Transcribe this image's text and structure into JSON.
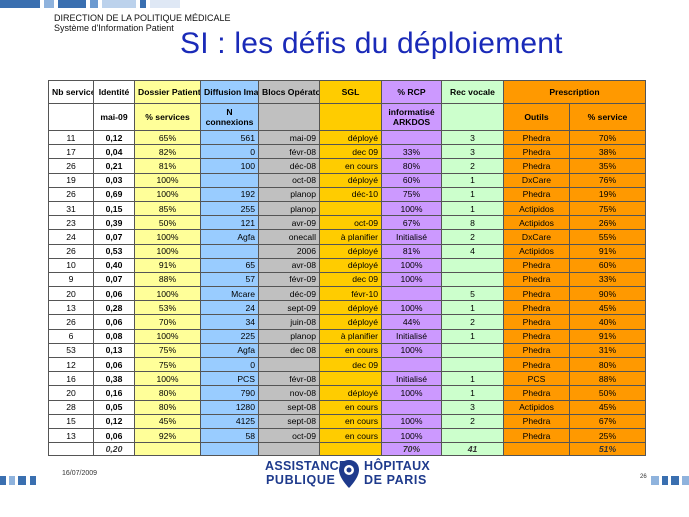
{
  "header": {
    "dept_line1": "DIRECTION DE LA POLITIQUE MÉDICALE",
    "dept_line2": "Système d'Information Patient",
    "title": "SI : les défis du déploiement"
  },
  "table": {
    "head1": {
      "nb": "Nb services",
      "identite": "Identité",
      "dossier": "Dossier Patient",
      "diffusion": "Diffusion Images",
      "blocs": "Blocs Opératoires",
      "sgl": "SGL",
      "rcp": "% RCP",
      "rec": "Rec vocale",
      "prescription": "Prescription"
    },
    "head2": {
      "identite": "mai-09",
      "dossier": "% services",
      "diffusion": "N connexions",
      "rcp": "informatisé ARKDOS",
      "outils": "Outils",
      "pct": "% service"
    },
    "rows": [
      {
        "nb": "11",
        "id": "0,12",
        "ds": "65%",
        "di": "561",
        "bl": "mai-09",
        "sg": "déployé",
        "rc": "",
        "rv": "3",
        "ou": "Phedra",
        "ps": "70%"
      },
      {
        "nb": "17",
        "id": "0,04",
        "ds": "82%",
        "di": "0",
        "bl": "févr-08",
        "sg": "dec 09",
        "rc": "33%",
        "rv": "3",
        "ou": "Phedra",
        "ps": "38%"
      },
      {
        "nb": "26",
        "id": "0,21",
        "ds": "81%",
        "di": "100",
        "bl": "déc-08",
        "sg": "en cours",
        "rc": "80%",
        "rv": "2",
        "ou": "Phedra",
        "ps": "35%"
      },
      {
        "nb": "19",
        "id": "0,03",
        "ds": "100%",
        "di": "",
        "bl": "oct-08",
        "sg": "déployé",
        "rc": "60%",
        "rv": "1",
        "ou": "DxCare",
        "ps": "76%"
      },
      {
        "nb": "26",
        "id": "0,69",
        "ds": "100%",
        "di": "192",
        "bl": "planop",
        "sg": "déc-10",
        "rc": "75%",
        "rv": "1",
        "ou": "Phedra",
        "ps": "19%"
      },
      {
        "nb": "31",
        "id": "0,15",
        "ds": "85%",
        "di": "255",
        "bl": "planop",
        "sg": "",
        "rc": "100%",
        "rv": "1",
        "ou": "Actipidos",
        "ps": "75%"
      },
      {
        "nb": "23",
        "id": "0,39",
        "ds": "50%",
        "di": "121",
        "bl": "avr-09",
        "sg": "oct-09",
        "rc": "67%",
        "rv": "8",
        "ou": "Actipidos",
        "ps": "26%"
      },
      {
        "nb": "24",
        "id": "0,07",
        "ds": "100%",
        "di": "Agfa",
        "bl": "onecall",
        "sg": "à planifier",
        "rc": "Initialisé",
        "rv": "2",
        "ou": "DxCare",
        "ps": "55%"
      },
      {
        "nb": "26",
        "id": "0,53",
        "ds": "100%",
        "di": "",
        "bl": "2006",
        "sg": "déployé",
        "rc": "81%",
        "rv": "4",
        "ou": "Actipidos",
        "ps": "91%"
      },
      {
        "nb": "10",
        "id": "0,40",
        "ds": "91%",
        "di": "65",
        "bl": "avr-08",
        "sg": "déployé",
        "rc": "100%",
        "rv": "",
        "ou": "Phedra",
        "ps": "60%"
      },
      {
        "nb": "9",
        "id": "0,07",
        "ds": "88%",
        "di": "57",
        "bl": "févr-09",
        "sg": "dec 09",
        "rc": "100%",
        "rv": "",
        "ou": "Phedra",
        "ps": "33%"
      },
      {
        "nb": "20",
        "id": "0,06",
        "ds": "100%",
        "di": "Mcare",
        "bl": "déc-09",
        "sg": "févr-10",
        "rc": "",
        "rv": "5",
        "ou": "Phedra",
        "ps": "90%"
      },
      {
        "nb": "13",
        "id": "0,28",
        "ds": "53%",
        "di": "24",
        "bl": "sept-09",
        "sg": "déployé",
        "rc": "100%",
        "rv": "1",
        "ou": "Phedra",
        "ps": "45%"
      },
      {
        "nb": "26",
        "id": "0,06",
        "ds": "70%",
        "di": "34",
        "bl": "juin-08",
        "sg": "déployé",
        "rc": "44%",
        "rv": "2",
        "ou": "Phedra",
        "ps": "40%"
      },
      {
        "nb": "6",
        "id": "0,08",
        "ds": "100%",
        "di": "225",
        "bl": "planop",
        "sg": "à planifier",
        "rc": "Initialisé",
        "rv": "1",
        "ou": "Phedra",
        "ps": "91%"
      },
      {
        "nb": "53",
        "id": "0,13",
        "ds": "75%",
        "di": "Agfa",
        "bl": "dec 08",
        "sg": "en cours",
        "rc": "100%",
        "rv": "",
        "ou": "Phedra",
        "ps": "31%"
      },
      {
        "nb": "12",
        "id": "0,06",
        "ds": "75%",
        "di": "0",
        "bl": "",
        "sg": "dec 09",
        "rc": "",
        "rv": "",
        "ou": "Phedra",
        "ps": "80%"
      },
      {
        "nb": "16",
        "id": "0,38",
        "ds": "100%",
        "di": "PCS",
        "bl": "févr-08",
        "sg": "",
        "rc": "Initialisé",
        "rv": "1",
        "ou": "PCS",
        "ps": "88%"
      },
      {
        "nb": "20",
        "id": "0,16",
        "ds": "80%",
        "di": "790",
        "bl": "nov-08",
        "sg": "déployé",
        "rc": "100%",
        "rv": "1",
        "ou": "Phedra",
        "ps": "50%"
      },
      {
        "nb": "28",
        "id": "0,05",
        "ds": "80%",
        "di": "1280",
        "bl": "sept-08",
        "sg": "en cours",
        "rc": "",
        "rv": "3",
        "ou": "Actipidos",
        "ps": "45%"
      },
      {
        "nb": "15",
        "id": "0,12",
        "ds": "45%",
        "di": "4125",
        "bl": "sept-08",
        "sg": "en cours",
        "rc": "100%",
        "rv": "2",
        "ou": "Phedra",
        "ps": "67%"
      },
      {
        "nb": "13",
        "id": "0,06",
        "ds": "92%",
        "di": "58",
        "bl": "oct-09",
        "sg": "en cours",
        "rc": "100%",
        "rv": "",
        "ou": "Phedra",
        "ps": "25%"
      }
    ],
    "totals": {
      "nb": "",
      "id": "0,20",
      "ds": "",
      "di": "",
      "bl": "",
      "sg": "",
      "rc": "70%",
      "rv": "41",
      "ou": "",
      "ps": "51%"
    }
  },
  "footer": {
    "date": "16/07/2009",
    "page": "26",
    "logo_left_1": "ASSISTANCE",
    "logo_left_2": "PUBLIQUE",
    "logo_right_1": "HÔPITAUX",
    "logo_right_2": "DE PARIS"
  },
  "colors": {
    "title": "#1a2ab8",
    "identite": "#ffffff",
    "dossier": "#ffff99",
    "diffusion": "#99ccff",
    "blocs": "#c0c0c0",
    "sgl": "#ffcc00",
    "rcp": "#cc99ff",
    "rec_vocale": "#ccffcc",
    "prescription": "#ff9900",
    "logo": "#1e3a8c"
  }
}
